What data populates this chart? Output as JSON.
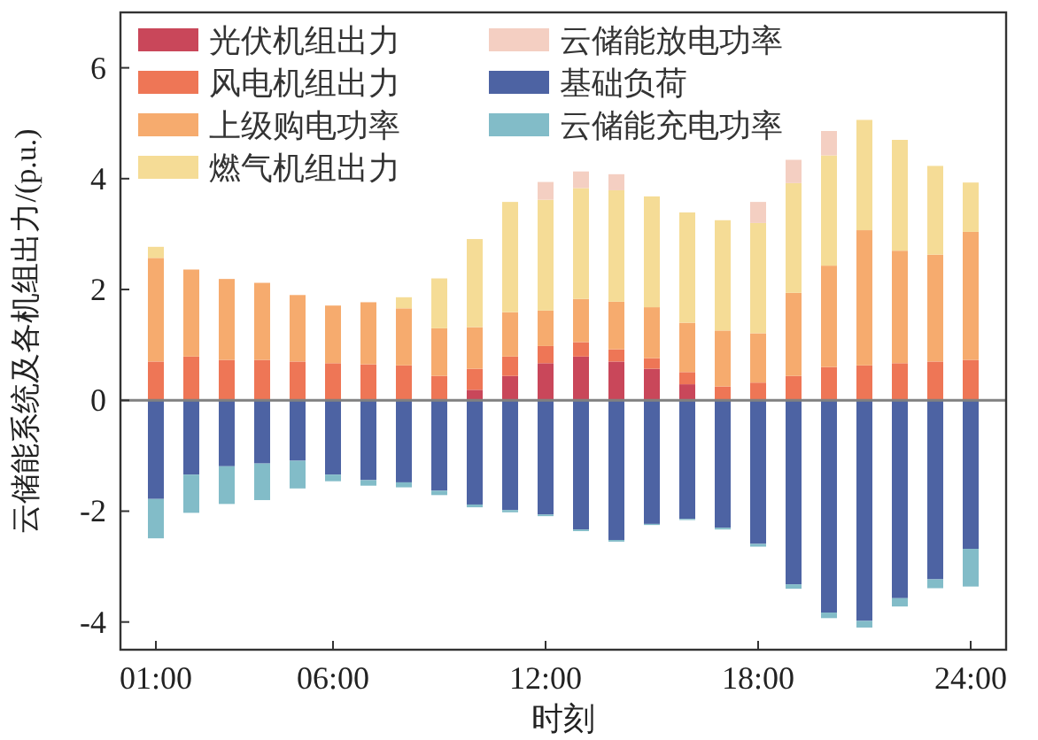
{
  "chart_data": {
    "type": "bar",
    "stacked": true,
    "xlabel": "时刻",
    "ylabel": "云储能系统及各机组出力/(p.u.)",
    "x": [
      1,
      2,
      3,
      4,
      5,
      6,
      7,
      8,
      9,
      10,
      11,
      12,
      13,
      14,
      15,
      16,
      17,
      18,
      19,
      20,
      21,
      22,
      23,
      24
    ],
    "xlim": [
      0,
      25
    ],
    "xticks": [
      {
        "value": 1,
        "label": "01:00"
      },
      {
        "value": 6,
        "label": "06:00"
      },
      {
        "value": 12,
        "label": "12:00"
      },
      {
        "value": 18,
        "label": "18:00"
      },
      {
        "value": 24,
        "label": "24:00"
      }
    ],
    "ylim": [
      -4.5,
      7
    ],
    "yticks": [
      -4,
      -2,
      0,
      2,
      4,
      6
    ],
    "ref_lines": [
      {
        "axis": "y",
        "value": 0,
        "color": "#808080"
      }
    ],
    "legend": "top left",
    "series": [
      {
        "name": "光伏机组出力",
        "color": "#c9475a",
        "values": [
          0,
          0,
          0,
          0,
          0,
          0,
          0,
          0,
          0,
          0.19,
          0.44,
          0.67,
          0.79,
          0.7,
          0.57,
          0.29,
          0,
          0,
          0,
          0,
          0,
          0,
          0,
          0
        ]
      },
      {
        "name": "风电机组出力",
        "color": "#ee7656",
        "values": [
          0.7,
          0.79,
          0.73,
          0.73,
          0.7,
          0.67,
          0.65,
          0.63,
          0.44,
          0.38,
          0.35,
          0.31,
          0.26,
          0.22,
          0.19,
          0.22,
          0.25,
          0.32,
          0.44,
          0.6,
          0.63,
          0.67,
          0.7,
          0.73
        ]
      },
      {
        "name": "上级购电功率",
        "color": "#f6ab6e",
        "values": [
          1.87,
          1.57,
          1.46,
          1.39,
          1.2,
          1.04,
          1.12,
          1.03,
          0.86,
          0.75,
          0.8,
          0.64,
          0.78,
          0.86,
          0.92,
          0.89,
          1.01,
          0.89,
          1.5,
          1.83,
          2.44,
          2.03,
          1.93,
          2.31
        ]
      },
      {
        "name": "燃气机组出力",
        "color": "#f5dc96",
        "values": [
          0.2,
          0,
          0,
          0,
          0,
          0,
          0,
          0.2,
          0.9,
          1.59,
          1.99,
          2,
          2,
          2.01,
          2,
          1.99,
          1.99,
          1.99,
          1.98,
          1.99,
          1.99,
          2,
          1.6,
          0.89
        ]
      },
      {
        "name": "云储能放电功率",
        "color": "#f4cfc2",
        "values": [
          0,
          0,
          0,
          0,
          0,
          0,
          0,
          0,
          0,
          0,
          0,
          0.32,
          0.3,
          0.29,
          0,
          0,
          0,
          0.38,
          0.42,
          0.44,
          0,
          0,
          0,
          0
        ]
      },
      {
        "name": "基础负荷",
        "color": "#4d63a3",
        "values": [
          -1.78,
          -1.34,
          -1.19,
          -1.14,
          -1.09,
          -1.34,
          -1.44,
          -1.48,
          -1.63,
          -1.88,
          -1.98,
          -2.06,
          -2.33,
          -2.52,
          -2.23,
          -2.14,
          -2.3,
          -2.59,
          -3.32,
          -3.83,
          -3.98,
          -3.57,
          -3.23,
          -2.68
        ]
      },
      {
        "name": "云储能充电功率",
        "color": "#82bcc8",
        "values": [
          -0.71,
          -0.69,
          -0.68,
          -0.66,
          -0.5,
          -0.12,
          -0.1,
          -0.09,
          -0.08,
          -0.05,
          -0.04,
          -0.03,
          -0.03,
          -0.03,
          -0.02,
          -0.02,
          -0.03,
          -0.05,
          -0.08,
          -0.1,
          -0.12,
          -0.15,
          -0.16,
          -0.68
        ]
      }
    ]
  }
}
